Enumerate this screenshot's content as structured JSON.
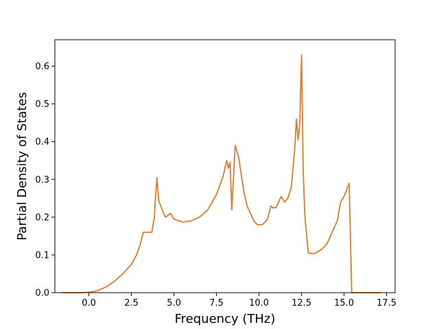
{
  "chart_data": {
    "type": "line",
    "title": "",
    "xlabel": "Frequency (THz)",
    "ylabel": "Partial Density of States",
    "xlim": [
      -2.0,
      18.0
    ],
    "ylim": [
      0.0,
      0.67
    ],
    "xticks": [
      0.0,
      2.5,
      5.0,
      7.5,
      10.0,
      12.5,
      15.0,
      17.5
    ],
    "xtick_labels": [
      "0.0",
      "2.5",
      "5.0",
      "7.5",
      "10.0",
      "12.5",
      "15.0",
      "17.5"
    ],
    "yticks": [
      0.0,
      0.1,
      0.2,
      0.3,
      0.4,
      0.5,
      0.6
    ],
    "ytick_labels": [
      "0.0",
      "0.1",
      "0.2",
      "0.3",
      "0.4",
      "0.5",
      "0.6"
    ],
    "grid": false,
    "legend": "none",
    "series": [
      {
        "name": "",
        "color": "#e07b25",
        "x": [
          -1.6,
          -0.5,
          0.0,
          0.5,
          1.0,
          1.5,
          2.0,
          2.5,
          2.8,
          3.0,
          3.2,
          3.5,
          3.7,
          3.85,
          3.9,
          4.0,
          4.1,
          4.3,
          4.5,
          4.8,
          5.0,
          5.5,
          6.0,
          6.5,
          7.0,
          7.5,
          7.9,
          8.1,
          8.2,
          8.3,
          8.4,
          8.6,
          8.8,
          8.9,
          9.1,
          9.3,
          9.5,
          9.7,
          9.9,
          10.2,
          10.5,
          10.7,
          10.8,
          11.0,
          11.3,
          11.5,
          11.7,
          11.9,
          12.1,
          12.2,
          12.3,
          12.4,
          12.5,
          12.6,
          12.7,
          12.9,
          13.2,
          13.4,
          13.5,
          13.7,
          14.0,
          14.3,
          14.6,
          14.8,
          15.0,
          15.3,
          15.45,
          15.65,
          16.0,
          17.2
        ],
        "y": [
          0.0,
          0.0,
          0.001,
          0.005,
          0.015,
          0.03,
          0.05,
          0.075,
          0.1,
          0.125,
          0.16,
          0.16,
          0.16,
          0.2,
          0.24,
          0.305,
          0.245,
          0.22,
          0.2,
          0.21,
          0.195,
          0.187,
          0.19,
          0.2,
          0.22,
          0.26,
          0.31,
          0.35,
          0.33,
          0.345,
          0.22,
          0.39,
          0.36,
          0.33,
          0.27,
          0.23,
          0.21,
          0.19,
          0.18,
          0.18,
          0.195,
          0.23,
          0.225,
          0.225,
          0.255,
          0.24,
          0.25,
          0.28,
          0.38,
          0.46,
          0.405,
          0.45,
          0.63,
          0.32,
          0.2,
          0.105,
          0.103,
          0.107,
          0.11,
          0.115,
          0.13,
          0.16,
          0.19,
          0.24,
          0.255,
          0.29,
          0.0,
          0.0,
          0.0,
          0.0
        ]
      }
    ]
  }
}
